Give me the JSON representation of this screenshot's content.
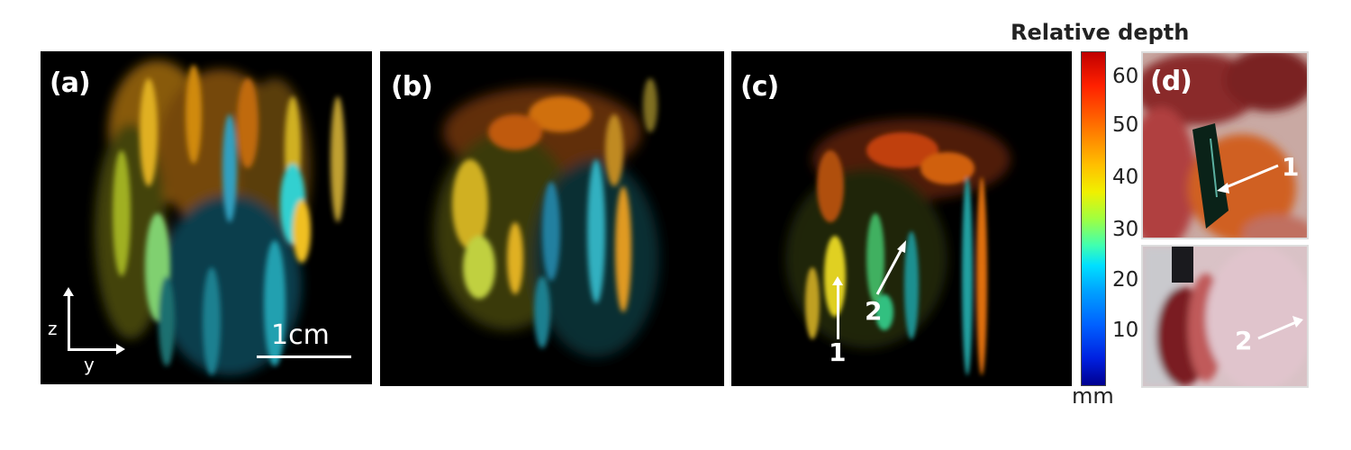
{
  "panels": {
    "a": {
      "label": "(a)",
      "scale_bar": "1cm",
      "axis_z": "z",
      "axis_y": "y"
    },
    "b": {
      "label": "(b)"
    },
    "c": {
      "label": "(c)",
      "arrow1": "1",
      "arrow2": "2"
    },
    "d": {
      "label": "(d)",
      "arrow1": "1",
      "arrow2": "2"
    }
  },
  "colorbar": {
    "title": "Relative depth",
    "ticks": [
      "60",
      "50",
      "40",
      "30",
      "20",
      "10"
    ],
    "unit": "mm",
    "colors": [
      "#c00000",
      "#ff7000",
      "#f0f000",
      "#40ffb0",
      "#0060ff",
      "#000090"
    ]
  }
}
